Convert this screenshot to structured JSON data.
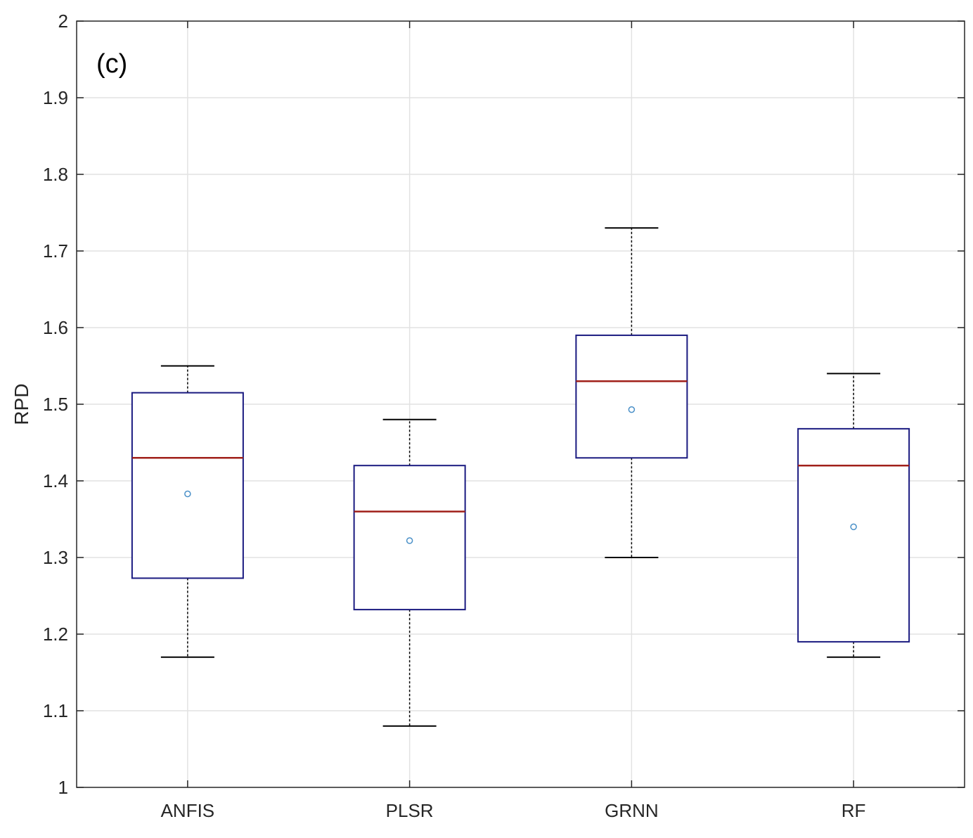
{
  "chart_data": {
    "type": "boxplot",
    "panel_label": "(c)",
    "xlabel": "",
    "ylabel": "RPD",
    "ylim": [
      1,
      2
    ],
    "yticks": [
      1,
      1.1,
      1.2,
      1.3,
      1.4,
      1.5,
      1.6,
      1.7,
      1.8,
      1.9,
      2
    ],
    "ytick_labels": [
      "1",
      "1.1",
      "1.2",
      "1.3",
      "1.4",
      "1.5",
      "1.6",
      "1.7",
      "1.8",
      "1.9",
      "2"
    ],
    "grid": true,
    "categories": [
      "ANFIS",
      "PLSR",
      "GRNN",
      "RF"
    ],
    "boxes": [
      {
        "name": "ANFIS",
        "whisker_low": 1.17,
        "q1": 1.273,
        "median": 1.43,
        "q3": 1.515,
        "whisker_high": 1.55,
        "mean": 1.383
      },
      {
        "name": "PLSR",
        "whisker_low": 1.08,
        "q1": 1.232,
        "median": 1.36,
        "q3": 1.42,
        "whisker_high": 1.48,
        "mean": 1.322
      },
      {
        "name": "GRNN",
        "whisker_low": 1.3,
        "q1": 1.43,
        "median": 1.53,
        "q3": 1.59,
        "whisker_high": 1.73,
        "mean": 1.493
      },
      {
        "name": "RF",
        "whisker_low": 1.17,
        "q1": 1.19,
        "median": 1.42,
        "q3": 1.468,
        "whisker_high": 1.54,
        "mean": 1.34
      }
    ],
    "colors": {
      "box": "#1a1a80",
      "median": "#a0201a",
      "whisker": "#000000",
      "mean": "#4a90c8",
      "grid": "#e2e2e2",
      "axis": "#262626"
    }
  }
}
